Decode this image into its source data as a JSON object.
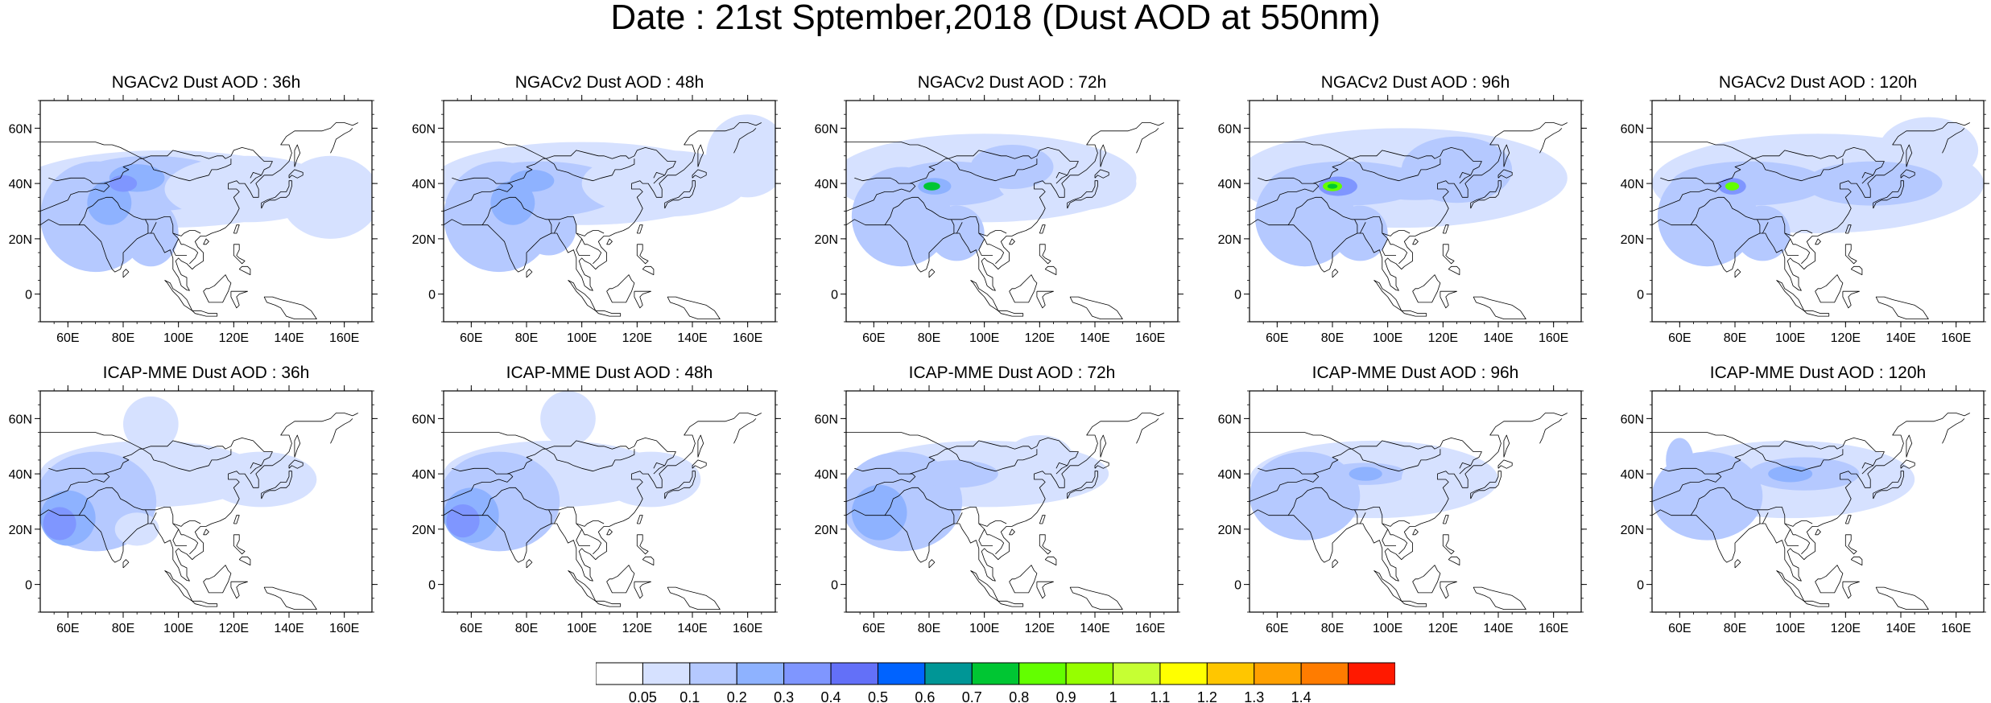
{
  "title": "Date : 21st Sptember,2018 (Dust AOD at 550nm)",
  "map_axes": {
    "lon_ticks": [
      {
        "value": 60,
        "label": "60E"
      },
      {
        "value": 80,
        "label": "80E"
      },
      {
        "value": 100,
        "label": "100E"
      },
      {
        "value": 120,
        "label": "120E"
      },
      {
        "value": 140,
        "label": "140E"
      },
      {
        "value": 160,
        "label": "160E"
      }
    ],
    "lat_ticks": [
      {
        "value": 60,
        "label": "60N"
      },
      {
        "value": 40,
        "label": "40N"
      },
      {
        "value": 20,
        "label": "20N"
      },
      {
        "value": 0,
        "label": "0"
      }
    ],
    "lon_range": [
      50,
      170
    ],
    "lat_range": [
      -10,
      70
    ]
  },
  "panels": [
    {
      "title": "NGACv2 Dust AOD : 36h",
      "model": "ngac",
      "hour": 36
    },
    {
      "title": "NGACv2 Dust AOD : 48h",
      "model": "ngac",
      "hour": 48
    },
    {
      "title": "NGACv2 Dust AOD : 72h",
      "model": "ngac",
      "hour": 72
    },
    {
      "title": "NGACv2 Dust AOD : 96h",
      "model": "ngac",
      "hour": 96
    },
    {
      "title": "NGACv2 Dust AOD : 120h",
      "model": "ngac",
      "hour": 120
    },
    {
      "title": "ICAP-MME Dust AOD : 36h",
      "model": "icap",
      "hour": 36
    },
    {
      "title": "ICAP-MME Dust AOD : 48h",
      "model": "icap",
      "hour": 48
    },
    {
      "title": "ICAP-MME Dust AOD : 72h",
      "model": "icap",
      "hour": 72
    },
    {
      "title": "ICAP-MME Dust AOD : 96h",
      "model": "icap",
      "hour": 96
    },
    {
      "title": "ICAP-MME Dust AOD : 120h",
      "model": "icap",
      "hour": 120
    }
  ],
  "colorbar": {
    "labels": [
      "0.05",
      "0.1",
      "0.2",
      "0.3",
      "0.4",
      "0.5",
      "0.6",
      "0.7",
      "0.8",
      "0.9",
      "1",
      "1.1",
      "1.2",
      "1.3",
      "1.4"
    ],
    "colors": [
      "#ffffff",
      "#d6e1ff",
      "#b5c9ff",
      "#8eb2ff",
      "#7f96ff",
      "#6370f8",
      "#0063ff",
      "#009696",
      "#00c633",
      "#63ff00",
      "#96ff00",
      "#c6ff33",
      "#ffff00",
      "#ffc600",
      "#ffa000",
      "#ff7c00",
      "#ff1900"
    ]
  }
}
